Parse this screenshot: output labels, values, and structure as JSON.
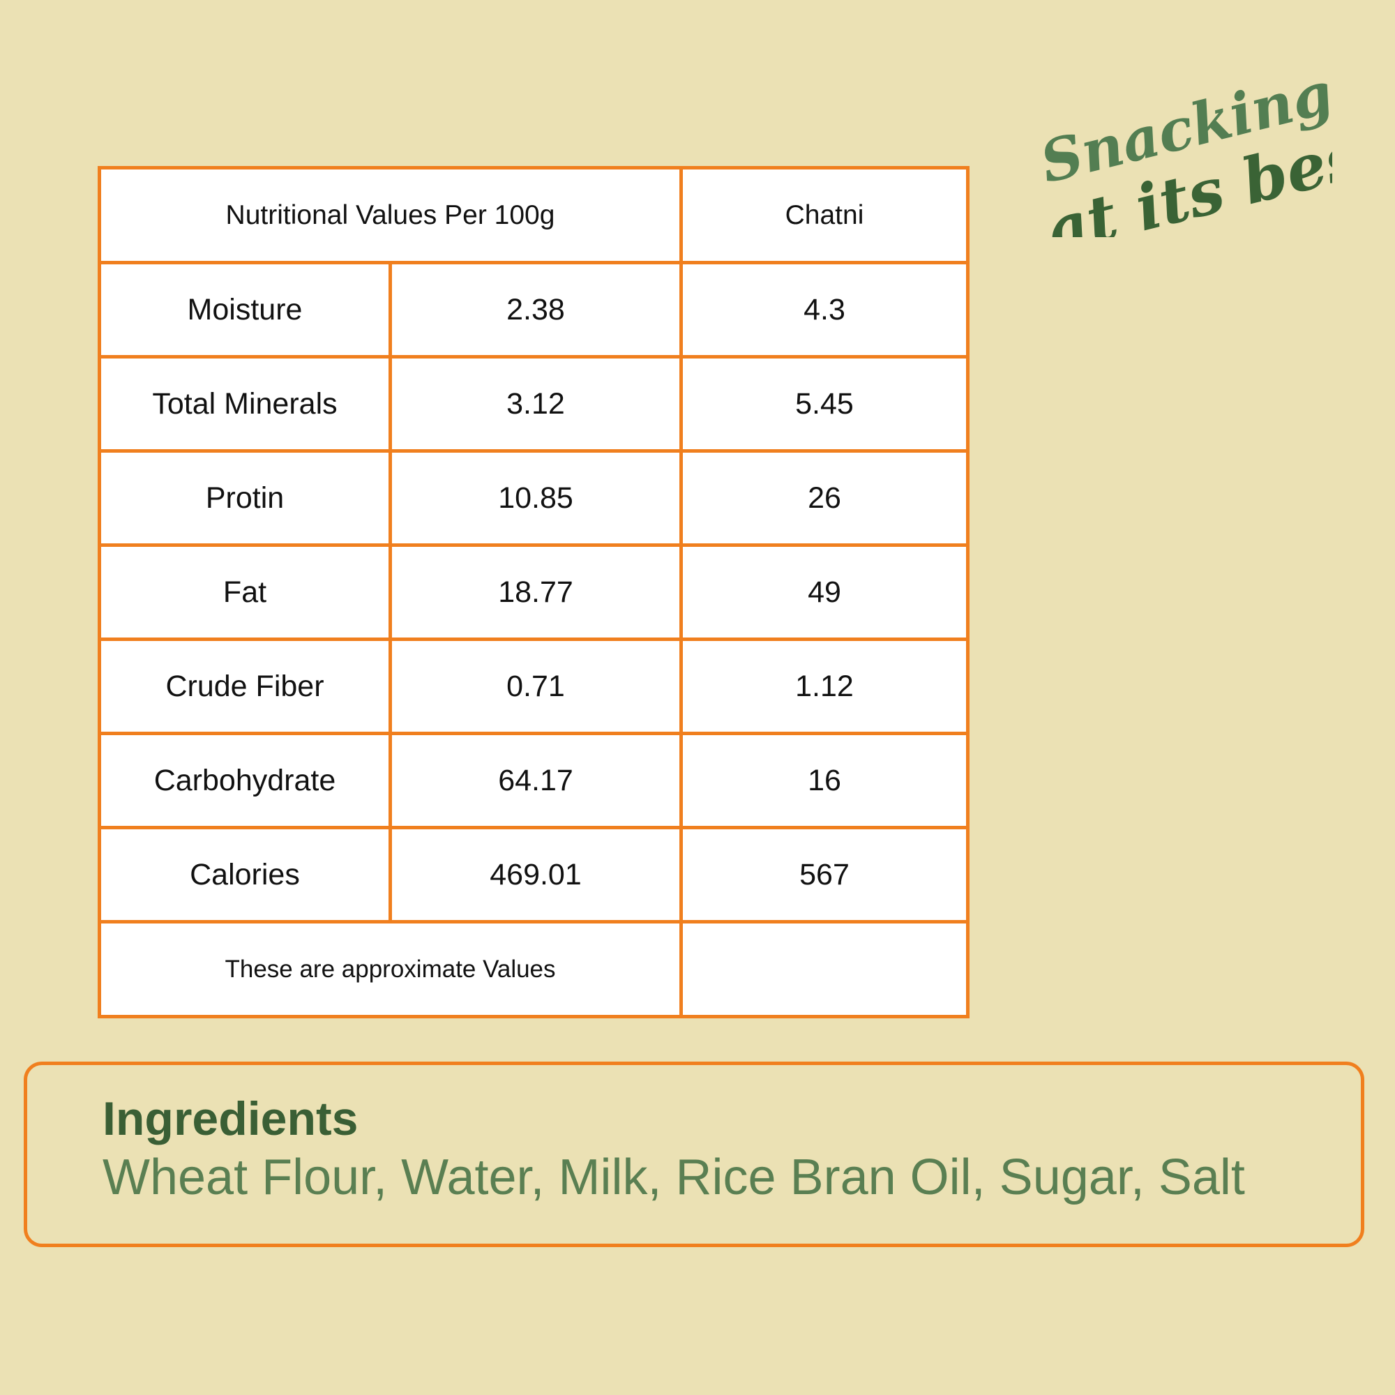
{
  "logo": {
    "line1": "Snacking",
    "line2": "at its best"
  },
  "table": {
    "header": {
      "label": "Nutritional Values Per 100g",
      "product": "Chatni"
    },
    "rows": [
      {
        "name": "Moisture",
        "v1": "2.38",
        "v2": "4.3"
      },
      {
        "name": "Total Minerals",
        "v1": "3.12",
        "v2": "5.45"
      },
      {
        "name": "Protin",
        "v1": "10.85",
        "v2": "26"
      },
      {
        "name": "Fat",
        "v1": "18.77",
        "v2": "49"
      },
      {
        "name": "Crude Fiber",
        "v1": "0.71",
        "v2": "1.12"
      },
      {
        "name": "Carbohydrate",
        "v1": "64.17",
        "v2": "16"
      },
      {
        "name": "Calories",
        "v1": "469.01",
        "v2": "567"
      }
    ],
    "footnote": "These are approximate Values",
    "footnote_right": ""
  },
  "ingredients": {
    "title": "Ingredients",
    "list": "Wheat Flour, Water, Milk, Rice Bran Oil, Sugar, Salt"
  },
  "colors": {
    "background": "#EBE1B4",
    "border": "#F07F1E",
    "green_dark": "#3A5F35",
    "green_light": "#5A7F52"
  }
}
